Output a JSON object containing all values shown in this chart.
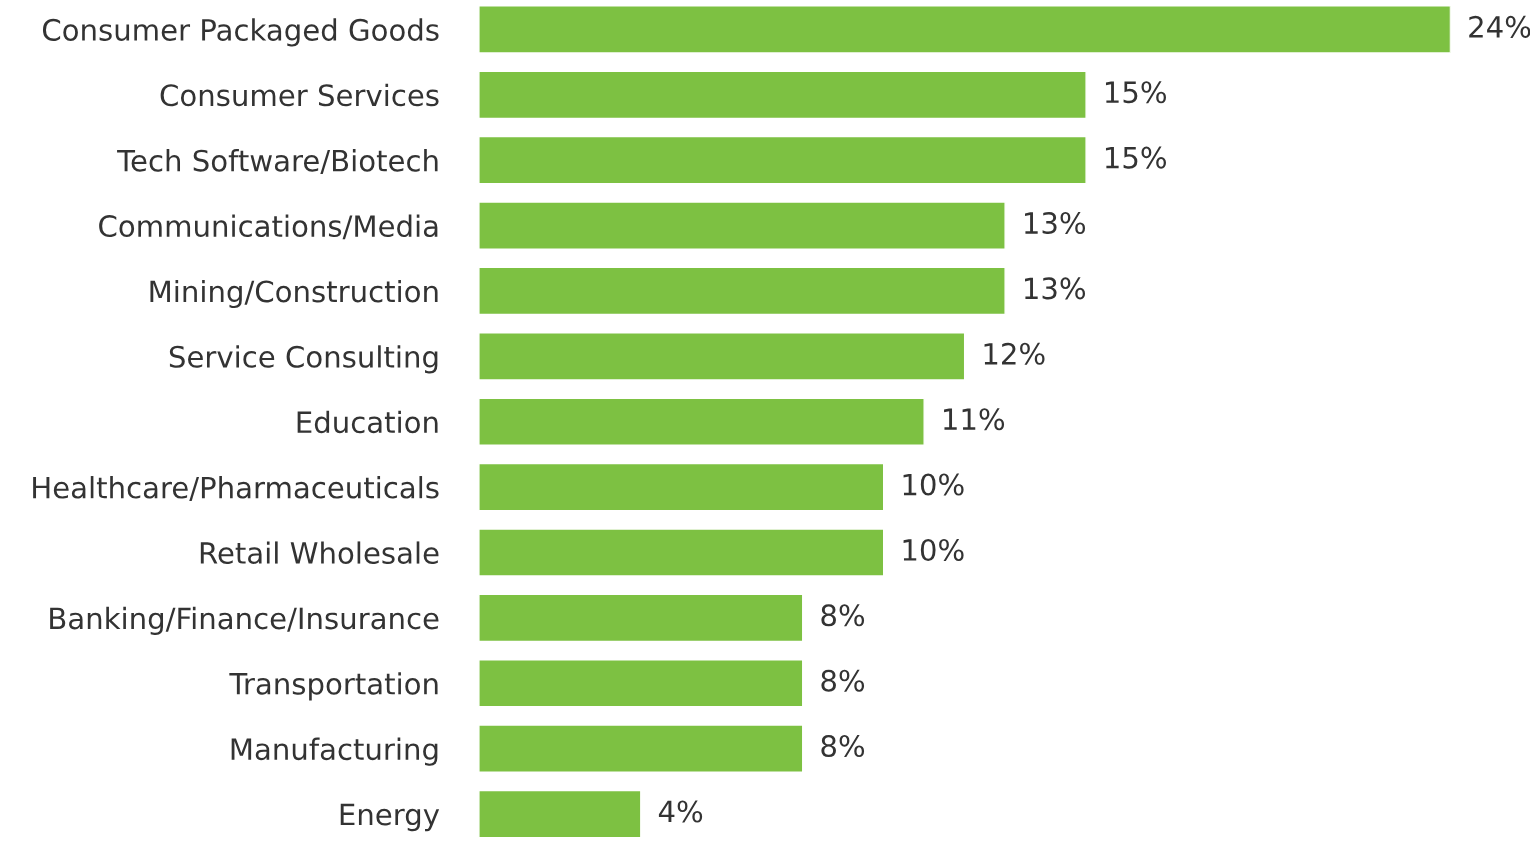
{
  "chart_data": {
    "type": "bar",
    "orientation": "horizontal",
    "categories": [
      "Consumer Packaged Goods",
      "Consumer Services",
      "Tech Software/Biotech",
      "Communications/Media",
      "Mining/Construction",
      "Service Consulting",
      "Education",
      "Healthcare/Pharmaceuticals",
      "Retail Wholesale",
      "Banking/Finance/Insurance",
      "Transportation",
      "Manufacturing",
      "Energy"
    ],
    "values": [
      24,
      15,
      15,
      13,
      13,
      12,
      11,
      10,
      10,
      8,
      8,
      8,
      4
    ],
    "value_labels": [
      "24%",
      "15%",
      "15%",
      "13%",
      "13%",
      "12%",
      "11%",
      "10%",
      "10%",
      "8%",
      "8%",
      "8%",
      "4%"
    ],
    "color": "#7dc142",
    "grid": false,
    "legend": false
  }
}
